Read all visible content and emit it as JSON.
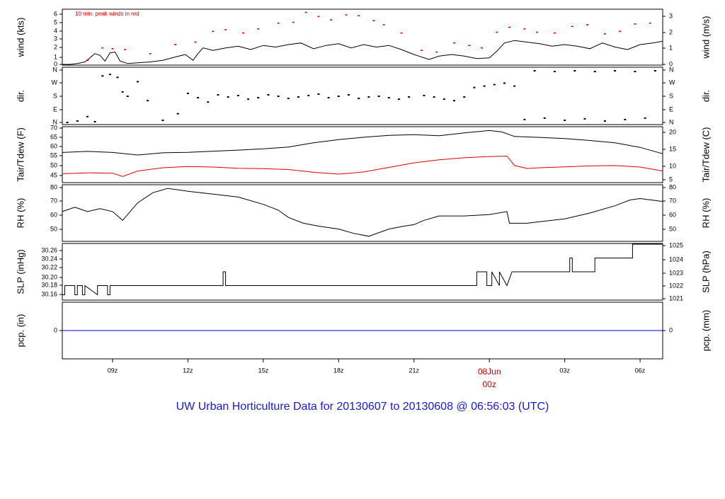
{
  "title": "UW Urban Horticulture Data for 20130607  to  20130608 @ 06:56:03  (UTC)",
  "colors": {
    "main": "#000000",
    "dew": "#e00000",
    "peak": "#e00000",
    "precip": "#0000cc",
    "title": "#1a1ad4",
    "date_label": "#cc0000"
  },
  "chart_data": [
    {
      "type": "line",
      "id": "wind",
      "ylabel_left": "wind (kts)",
      "ylabel_right": "wind (m/s)",
      "ylim": [
        0,
        6.6
      ],
      "yticks_left": [
        "0",
        "1",
        "2",
        "3",
        "4",
        "5",
        "6"
      ],
      "yticks_right": [
        "0",
        "1",
        "2",
        "3"
      ],
      "annotation": "10 min. peak winds in red",
      "series": [
        {
          "role": "mean",
          "x": [
            7.0,
            7.3,
            7.6,
            7.9,
            8.1,
            8.3,
            8.5,
            8.7,
            8.9,
            9.1,
            9.3,
            9.6,
            10.0,
            10.5,
            11.0,
            11.5,
            11.9,
            12.2,
            12.4,
            12.6,
            13.0,
            13.5,
            14.0,
            14.5,
            15.0,
            15.5,
            16.0,
            16.5,
            17.0,
            17.5,
            18.0,
            18.5,
            19.0,
            19.5,
            20.0,
            20.5,
            21.0,
            21.2,
            21.6,
            22.0,
            22.5,
            23.0,
            23.5,
            24.0,
            24.3,
            24.6,
            25.0,
            25.5,
            26.0,
            26.5,
            27.0,
            27.5,
            28.0,
            28.5,
            29.0,
            29.5,
            30.0,
            30.5,
            30.9
          ],
          "y": [
            0.0,
            0.0,
            0.1,
            0.3,
            0.8,
            1.3,
            1.1,
            0.4,
            1.4,
            1.5,
            0.4,
            0.1,
            0.2,
            0.3,
            0.5,
            0.9,
            1.2,
            0.5,
            1.3,
            2.0,
            1.7,
            2.0,
            2.2,
            1.8,
            2.3,
            2.1,
            2.4,
            2.6,
            1.9,
            2.3,
            2.5,
            2.0,
            2.4,
            2.1,
            2.3,
            1.8,
            1.2,
            1.0,
            0.6,
            1.0,
            1.2,
            1.0,
            0.7,
            0.8,
            1.6,
            2.6,
            2.9,
            2.7,
            2.5,
            2.2,
            2.4,
            2.2,
            1.9,
            2.6,
            2.1,
            1.8,
            2.4,
            2.6,
            2.8
          ]
        },
        {
          "role": "peak",
          "x": [
            8.0,
            8.6,
            9.0,
            9.5,
            10.5,
            11.5,
            12.3,
            13.0,
            13.5,
            14.2,
            14.8,
            15.6,
            16.2,
            16.7,
            17.2,
            17.7,
            18.3,
            18.8,
            19.4,
            19.8,
            20.5,
            21.3,
            21.9,
            22.6,
            23.2,
            23.7,
            24.3,
            24.8,
            25.4,
            25.9,
            26.6,
            27.3,
            27.9,
            28.6,
            29.2,
            29.8,
            30.4
          ],
          "y": [
            0.5,
            2.0,
            1.9,
            1.8,
            1.3,
            2.4,
            2.7,
            4.0,
            4.2,
            3.8,
            4.3,
            5.0,
            5.1,
            6.3,
            5.8,
            5.4,
            6.0,
            5.9,
            5.3,
            4.8,
            3.8,
            1.7,
            1.5,
            2.6,
            2.3,
            2.0,
            3.9,
            4.5,
            4.3,
            3.9,
            3.8,
            4.6,
            4.8,
            3.7,
            4.0,
            4.9,
            5.0
          ]
        }
      ]
    },
    {
      "type": "scatter",
      "id": "direction",
      "ylabel_left": "dir.",
      "ylabel_right": "dir.",
      "yticks": [
        "N",
        "E",
        "S",
        "W",
        "N"
      ],
      "ylim": [
        0,
        360
      ],
      "x": [
        7.2,
        7.6,
        8.0,
        8.3,
        8.6,
        8.9,
        9.2,
        9.4,
        9.6,
        10.0,
        10.4,
        11.0,
        11.6,
        12.0,
        12.4,
        12.8,
        13.2,
        13.6,
        14.0,
        14.4,
        14.8,
        15.2,
        15.6,
        16.0,
        16.4,
        16.8,
        17.2,
        17.6,
        18.0,
        18.4,
        18.8,
        19.2,
        19.6,
        20.0,
        20.4,
        20.8,
        21.4,
        21.8,
        22.2,
        22.6,
        23.0,
        23.4,
        23.8,
        24.2,
        24.6,
        25.0,
        25.4,
        25.8,
        26.2,
        26.6,
        27.0,
        27.4,
        27.8,
        28.2,
        28.6,
        29.0,
        29.4,
        29.8,
        30.2,
        30.6
      ],
      "y": [
        0,
        10,
        40,
        5,
        320,
        330,
        310,
        210,
        180,
        280,
        150,
        15,
        60,
        200,
        170,
        140,
        190,
        175,
        185,
        160,
        170,
        190,
        180,
        165,
        175,
        185,
        195,
        170,
        180,
        190,
        165,
        175,
        180,
        170,
        160,
        175,
        185,
        175,
        160,
        150,
        175,
        240,
        250,
        260,
        270,
        250,
        20,
        355,
        30,
        350,
        15,
        355,
        25,
        350,
        10,
        355,
        20,
        350,
        30,
        355
      ]
    },
    {
      "type": "line",
      "id": "temperature",
      "ylabel_left": "Tair/Tdew (F)",
      "ylabel_right": "Tair/Tdew (C)",
      "ylim": [
        41,
        71
      ],
      "yticks_left": [
        "45",
        "50",
        "55",
        "60",
        "65",
        "70"
      ],
      "yticks_right": [
        "5",
        "10",
        "15",
        "20"
      ],
      "series": [
        {
          "role": "Tair",
          "x": [
            7.0,
            8.0,
            9.0,
            10.0,
            11.0,
            12.0,
            13.0,
            14.0,
            15.0,
            16.0,
            17.0,
            18.0,
            19.0,
            20.0,
            21.0,
            22.0,
            23.0,
            24.0,
            24.5,
            25.0,
            26.0,
            27.0,
            28.0,
            29.0,
            30.0,
            30.9
          ],
          "y": [
            57.2,
            57.8,
            57.2,
            55.8,
            57.0,
            57.3,
            57.9,
            58.5,
            59.2,
            60.2,
            62.5,
            64.3,
            65.6,
            66.6,
            67.0,
            66.4,
            68.0,
            69.3,
            68.5,
            66.0,
            65.5,
            64.9,
            63.8,
            62.5,
            60.0,
            56.5
          ]
        },
        {
          "role": "Tdew",
          "x": [
            7.0,
            8.0,
            9.0,
            9.4,
            10.0,
            11.0,
            12.0,
            13.0,
            14.0,
            15.0,
            16.0,
            17.0,
            18.0,
            19.0,
            20.0,
            21.0,
            22.0,
            23.0,
            24.0,
            24.7,
            25.0,
            25.5,
            26.0,
            27.0,
            28.0,
            29.0,
            30.0,
            30.9
          ],
          "y": [
            45.5,
            46.0,
            45.8,
            44.0,
            47.0,
            48.8,
            49.5,
            49.2,
            48.5,
            48.3,
            47.8,
            46.3,
            45.3,
            46.5,
            49.0,
            51.5,
            53.2,
            54.3,
            55.0,
            55.2,
            50.0,
            48.4,
            48.8,
            49.3,
            49.8,
            50.0,
            49.2,
            47.0
          ]
        }
      ]
    },
    {
      "type": "line",
      "id": "humidity",
      "ylabel_left": "RH (%)",
      "ylabel_right": "RH (%)",
      "ylim": [
        42,
        80
      ],
      "yticks": [
        "50",
        "60",
        "70",
        "80"
      ],
      "series": [
        {
          "role": "RH",
          "x": [
            7.0,
            7.5,
            8.0,
            8.5,
            9.0,
            9.4,
            10.0,
            10.6,
            11.2,
            12.0,
            13.0,
            14.0,
            15.0,
            15.6,
            16.0,
            16.6,
            17.2,
            18.0,
            18.6,
            19.2,
            20.0,
            20.6,
            21.0,
            21.4,
            22.0,
            23.0,
            24.0,
            24.7,
            24.8,
            25.5,
            26.0,
            27.0,
            28.0,
            29.0,
            29.6,
            30.0,
            30.9
          ],
          "y": [
            62,
            65,
            62,
            64,
            62,
            56,
            68,
            75,
            78,
            76,
            74,
            72,
            67,
            63,
            58,
            54,
            52,
            50,
            47,
            45,
            50,
            52,
            53,
            56,
            59,
            59,
            60,
            62,
            54,
            54,
            55,
            57,
            61,
            66,
            70,
            71,
            69
          ]
        }
      ]
    },
    {
      "type": "line",
      "id": "pressure",
      "ylabel_left": "SLP (inHg)",
      "ylabel_right": "SLP (hPa)",
      "ylim": [
        30.15,
        30.27
      ],
      "yticks_left": [
        "30.16",
        "30.18",
        "30.20",
        "30.22",
        "30.24",
        "30.26"
      ],
      "yticks_right": [
        "1021",
        "1022",
        "1023",
        "1024",
        "1025"
      ],
      "series": [
        {
          "role": "SLP",
          "x": [
            7.0,
            7.1,
            7.1,
            7.5,
            7.5,
            7.6,
            7.6,
            7.8,
            7.8,
            7.9,
            7.9,
            8.4,
            8.4,
            8.8,
            8.8,
            8.9,
            8.9,
            13.4,
            13.4,
            13.5,
            13.5,
            23.5,
            23.5,
            23.9,
            23.9,
            24.1,
            24.1,
            24.4,
            24.4,
            24.7,
            24.7,
            24.9,
            24.9,
            27.2,
            27.2,
            27.3,
            27.3,
            28.2,
            28.2,
            29.7,
            29.7,
            30.9
          ],
          "y": [
            30.16,
            30.16,
            30.18,
            30.18,
            30.16,
            30.16,
            30.18,
            30.18,
            30.16,
            30.16,
            30.18,
            30.16,
            30.18,
            30.18,
            30.16,
            30.16,
            30.18,
            30.18,
            30.21,
            30.21,
            30.18,
            30.18,
            30.21,
            30.21,
            30.18,
            30.18,
            30.21,
            30.18,
            30.21,
            30.18,
            30.18,
            30.21,
            30.21,
            30.21,
            30.24,
            30.24,
            30.21,
            30.21,
            30.24,
            30.24,
            30.27,
            30.27
          ]
        }
      ]
    },
    {
      "type": "line",
      "id": "precipitation",
      "ylabel_left": "pcp. (in)",
      "ylabel_right": "pcp. (mm)",
      "yticks_left": [
        "0"
      ],
      "yticks_right": [
        "0"
      ],
      "series": [
        {
          "role": "precip",
          "x": [
            7.0,
            30.9
          ],
          "y": [
            0,
            0
          ]
        }
      ]
    }
  ],
  "x_axis": {
    "range": [
      7.0,
      30.9
    ],
    "ticks": [
      {
        "x": 9,
        "label": "09z"
      },
      {
        "x": 12,
        "label": "12z"
      },
      {
        "x": 15,
        "label": "15z"
      },
      {
        "x": 18,
        "label": "18z"
      },
      {
        "x": 21,
        "label": "21z"
      },
      {
        "x": 27,
        "label": "03z"
      },
      {
        "x": 30,
        "label": "06z"
      }
    ],
    "date_tick": {
      "x": 24,
      "line1": "08Jun",
      "line2": "00z"
    }
  }
}
